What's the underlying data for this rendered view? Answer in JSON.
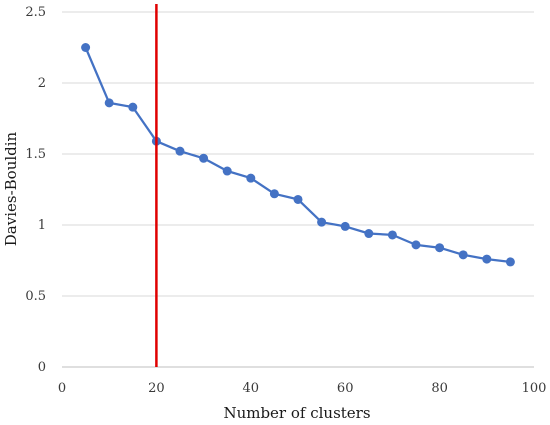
{
  "chart_data": {
    "type": "line",
    "title": "",
    "xlabel": "Number of clusters",
    "ylabel": "Davies-Bouldin",
    "xlim": [
      0,
      100
    ],
    "ylim": [
      0,
      2.5
    ],
    "xticks": [
      0,
      20,
      40,
      60,
      80,
      100
    ],
    "yticks": [
      0,
      0.5,
      1,
      1.5,
      2,
      2.5
    ],
    "xtick_labels": [
      "0",
      "20",
      "40",
      "60",
      "80",
      "100"
    ],
    "ytick_labels": [
      "0",
      "0.5",
      "1",
      "1.5",
      "2",
      "2.5"
    ],
    "grid": "horizontal",
    "legend": "none",
    "series": [
      {
        "color": "#4472C4",
        "x": [
          5,
          10,
          15,
          20,
          25,
          30,
          35,
          40,
          45,
          50,
          55,
          60,
          65,
          70,
          75,
          80,
          85,
          90,
          95
        ],
        "y": [
          2.25,
          1.86,
          1.83,
          1.59,
          1.52,
          1.47,
          1.38,
          1.33,
          1.22,
          1.18,
          1.02,
          0.99,
          0.94,
          0.93,
          0.86,
          0.84,
          0.79,
          0.76,
          0.74
        ]
      }
    ],
    "reference_line": {
      "orientation": "vertical",
      "x": 20,
      "color": "#E00000"
    }
  }
}
